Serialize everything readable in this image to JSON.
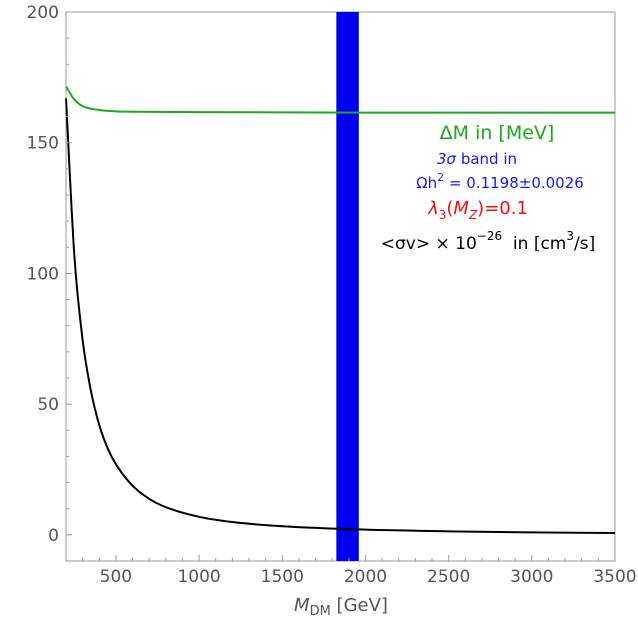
{
  "chart_data": {
    "type": "line",
    "xlabel": "M",
    "xlabel_sub": "DM",
    "xlabel_unit": "[GeV]",
    "xlim": [
      200,
      3500
    ],
    "ylim": [
      -10,
      200
    ],
    "x_ticks": [
      500,
      1000,
      1500,
      2000,
      2500,
      3000,
      3500
    ],
    "y_ticks": [
      0,
      50,
      100,
      150,
      200
    ],
    "grid": false,
    "series": [
      {
        "name": "ΔM in [MeV]",
        "color": "#1aaa1a",
        "x": [
          200,
          250,
          300,
          400,
          500,
          700,
          1000,
          1500,
          2000,
          2500,
          3000,
          3500
        ],
        "y": [
          171.5,
          166.5,
          164.0,
          162.5,
          162.0,
          161.8,
          161.7,
          161.6,
          161.5,
          161.5,
          161.5,
          161.5
        ]
      },
      {
        "name": "<σv> × 10^-26 in [cm^3/s]",
        "color": "#000000",
        "x": [
          200,
          250,
          300,
          350,
          400,
          450,
          500,
          600,
          700,
          800,
          1000,
          1200,
          1500,
          2000,
          2500,
          3000,
          3500
        ],
        "y": [
          167,
          107,
          74.5,
          55,
          42,
          33.2,
          27,
          18.8,
          13.8,
          10.6,
          6.9,
          4.9,
          3.3,
          2.0,
          1.35,
          0.95,
          0.7
        ]
      }
    ],
    "band": {
      "label": "3σ band in Ωh² = 0.1198±0.0026",
      "x_range": [
        1825,
        1960
      ],
      "color": "#0000ee"
    },
    "annotations": {
      "delta_m": "ΔM in [MeV]",
      "band_line1_sym": "3σ",
      "band_line1_rest": " band in",
      "band_line2_pre": "Ωh",
      "band_line2_sup": "2",
      "band_line2_post": " = 0.1198±0.0026",
      "lambda_sym": "λ",
      "lambda_sub": "3",
      "lambda_open": "(",
      "lambda_mz": "M",
      "lambda_mz_sub": "Z",
      "lambda_close": ")=0.1",
      "sigma_pre": "<σv> × 10",
      "sigma_exp": "−26",
      "sigma_mid": "  in [cm",
      "sigma_sup": "3",
      "sigma_post": "/s]"
    },
    "colors": {
      "green": "#1aaa1a",
      "blue": "#1a1aee",
      "red": "#ee1111",
      "black": "#000000"
    }
  }
}
